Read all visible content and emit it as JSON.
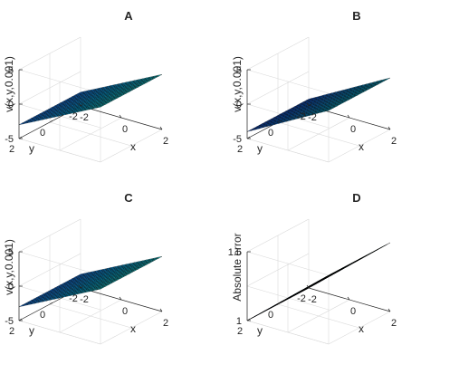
{
  "chart_data": [
    {
      "type": "surface",
      "panel": "A",
      "title": "A",
      "xlabel": "x",
      "ylabel": "y",
      "zlabel": "v(x,y,0.001)",
      "xlim": [
        -2,
        2
      ],
      "ylim": [
        -2,
        2
      ],
      "zlim": [
        -5,
        5
      ],
      "xticks": [
        "-2",
        "0",
        "2"
      ],
      "yticks": [
        "-2",
        "0",
        "2"
      ],
      "zticks": [
        "-5",
        "0",
        "5"
      ],
      "surface": {
        "kind": "plane",
        "z_at_corners": {
          "x-2_y-2": -3,
          "x2_y-2": 3,
          "x-2_y2": -3,
          "x2_y2": 3
        }
      },
      "colormap": "parula",
      "grid": true
    },
    {
      "type": "surface",
      "panel": "B",
      "title": "B",
      "xlabel": "x",
      "ylabel": "y",
      "zlabel": "v(x,y,0.001)",
      "xlim": [
        -2,
        2
      ],
      "ylim": [
        -2,
        2
      ],
      "zlim": [
        -5,
        5
      ],
      "xticks": [
        "-2",
        "0",
        "2"
      ],
      "yticks": [
        "-2",
        "0",
        "2"
      ],
      "zticks": [
        "-5",
        "0",
        "5"
      ],
      "surface": {
        "kind": "plane",
        "z_at_corners": {
          "x-2_y-2": -4,
          "x2_y-2": 2.5,
          "x-2_y2": -4,
          "x2_y2": 2.5
        }
      },
      "colormap": "parula",
      "grid": true
    },
    {
      "type": "surface",
      "panel": "C",
      "title": "C",
      "xlabel": "x",
      "ylabel": "y",
      "zlabel": "v(x,y,0.001)",
      "xlim": [
        -2,
        2
      ],
      "ylim": [
        -2,
        2
      ],
      "zlim": [
        -5,
        5
      ],
      "xticks": [
        "-2",
        "0",
        "2"
      ],
      "yticks": [
        "-2",
        "0",
        "2"
      ],
      "zticks": [
        "-5",
        "0",
        "5"
      ],
      "surface": {
        "kind": "plane",
        "z_at_corners": {
          "x-2_y-2": -3,
          "x2_y-2": 3,
          "x-2_y2": -3,
          "x2_y2": 3
        }
      },
      "colormap": "parula",
      "grid": true
    },
    {
      "type": "surface",
      "panel": "D",
      "title": "D",
      "xlabel": "x",
      "ylabel": "y",
      "zlabel": "Absolute error",
      "xlim": [
        -2,
        2
      ],
      "ylim": [
        -2,
        2
      ],
      "zlim": [
        1,
        1.5
      ],
      "xticks": [
        "-2",
        "0",
        "2"
      ],
      "yticks": [
        "-2",
        "0",
        "2"
      ],
      "zticks": [
        "1",
        "1.5"
      ],
      "surface": {
        "kind": "plane",
        "z_at_corners": {
          "x-2_y-2": 1.0,
          "x2_y-2": 1.5,
          "x-2_y2": 1.0,
          "x2_y2": 1.5
        }
      },
      "colormap": "parula",
      "grid": true
    }
  ]
}
